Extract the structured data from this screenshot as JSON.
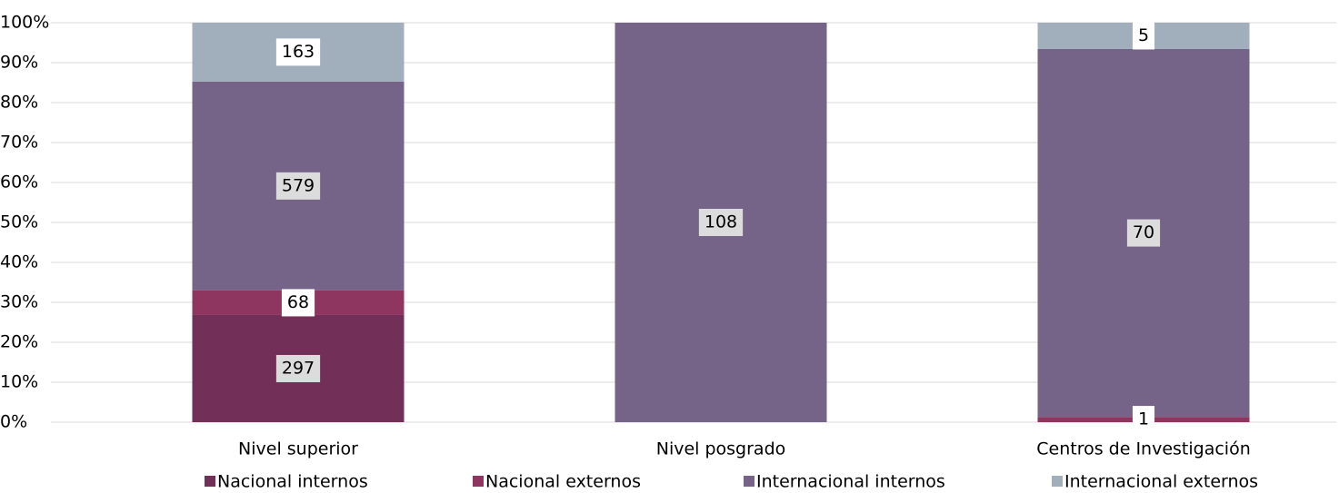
{
  "chart_data": {
    "type": "bar",
    "stacking": "percent",
    "categories": [
      "Nivel superior",
      "Nivel posgrado",
      "Centros de Investigación"
    ],
    "series": [
      {
        "name": "Nacional internos",
        "color": "#722f57",
        "values": [
          297,
          null,
          null
        ]
      },
      {
        "name": "Nacional externos",
        "color": "#8e3560",
        "values": [
          68,
          null,
          1
        ]
      },
      {
        "name": "Internacional internos",
        "color": "#756488",
        "values": [
          579,
          108,
          70
        ]
      },
      {
        "name": "Internacional externos",
        "color": "#a1afbd",
        "values": [
          163,
          null,
          5
        ]
      }
    ],
    "ylim": [
      0,
      100
    ],
    "yticks": [
      {
        "value": 0,
        "label": "0%"
      },
      {
        "value": 10,
        "label": "10%"
      },
      {
        "value": 20,
        "label": "20%"
      },
      {
        "value": 30,
        "label": "30%"
      },
      {
        "value": 40,
        "label": "40%"
      },
      {
        "value": 50,
        "label": "50%"
      },
      {
        "value": 60,
        "label": "60%"
      },
      {
        "value": 70,
        "label": "70%"
      },
      {
        "value": 80,
        "label": "80%"
      },
      {
        "value": 90,
        "label": "90%"
      },
      {
        "value": 100,
        "label": "100%"
      }
    ],
    "grid": true,
    "legend": "bottom"
  }
}
